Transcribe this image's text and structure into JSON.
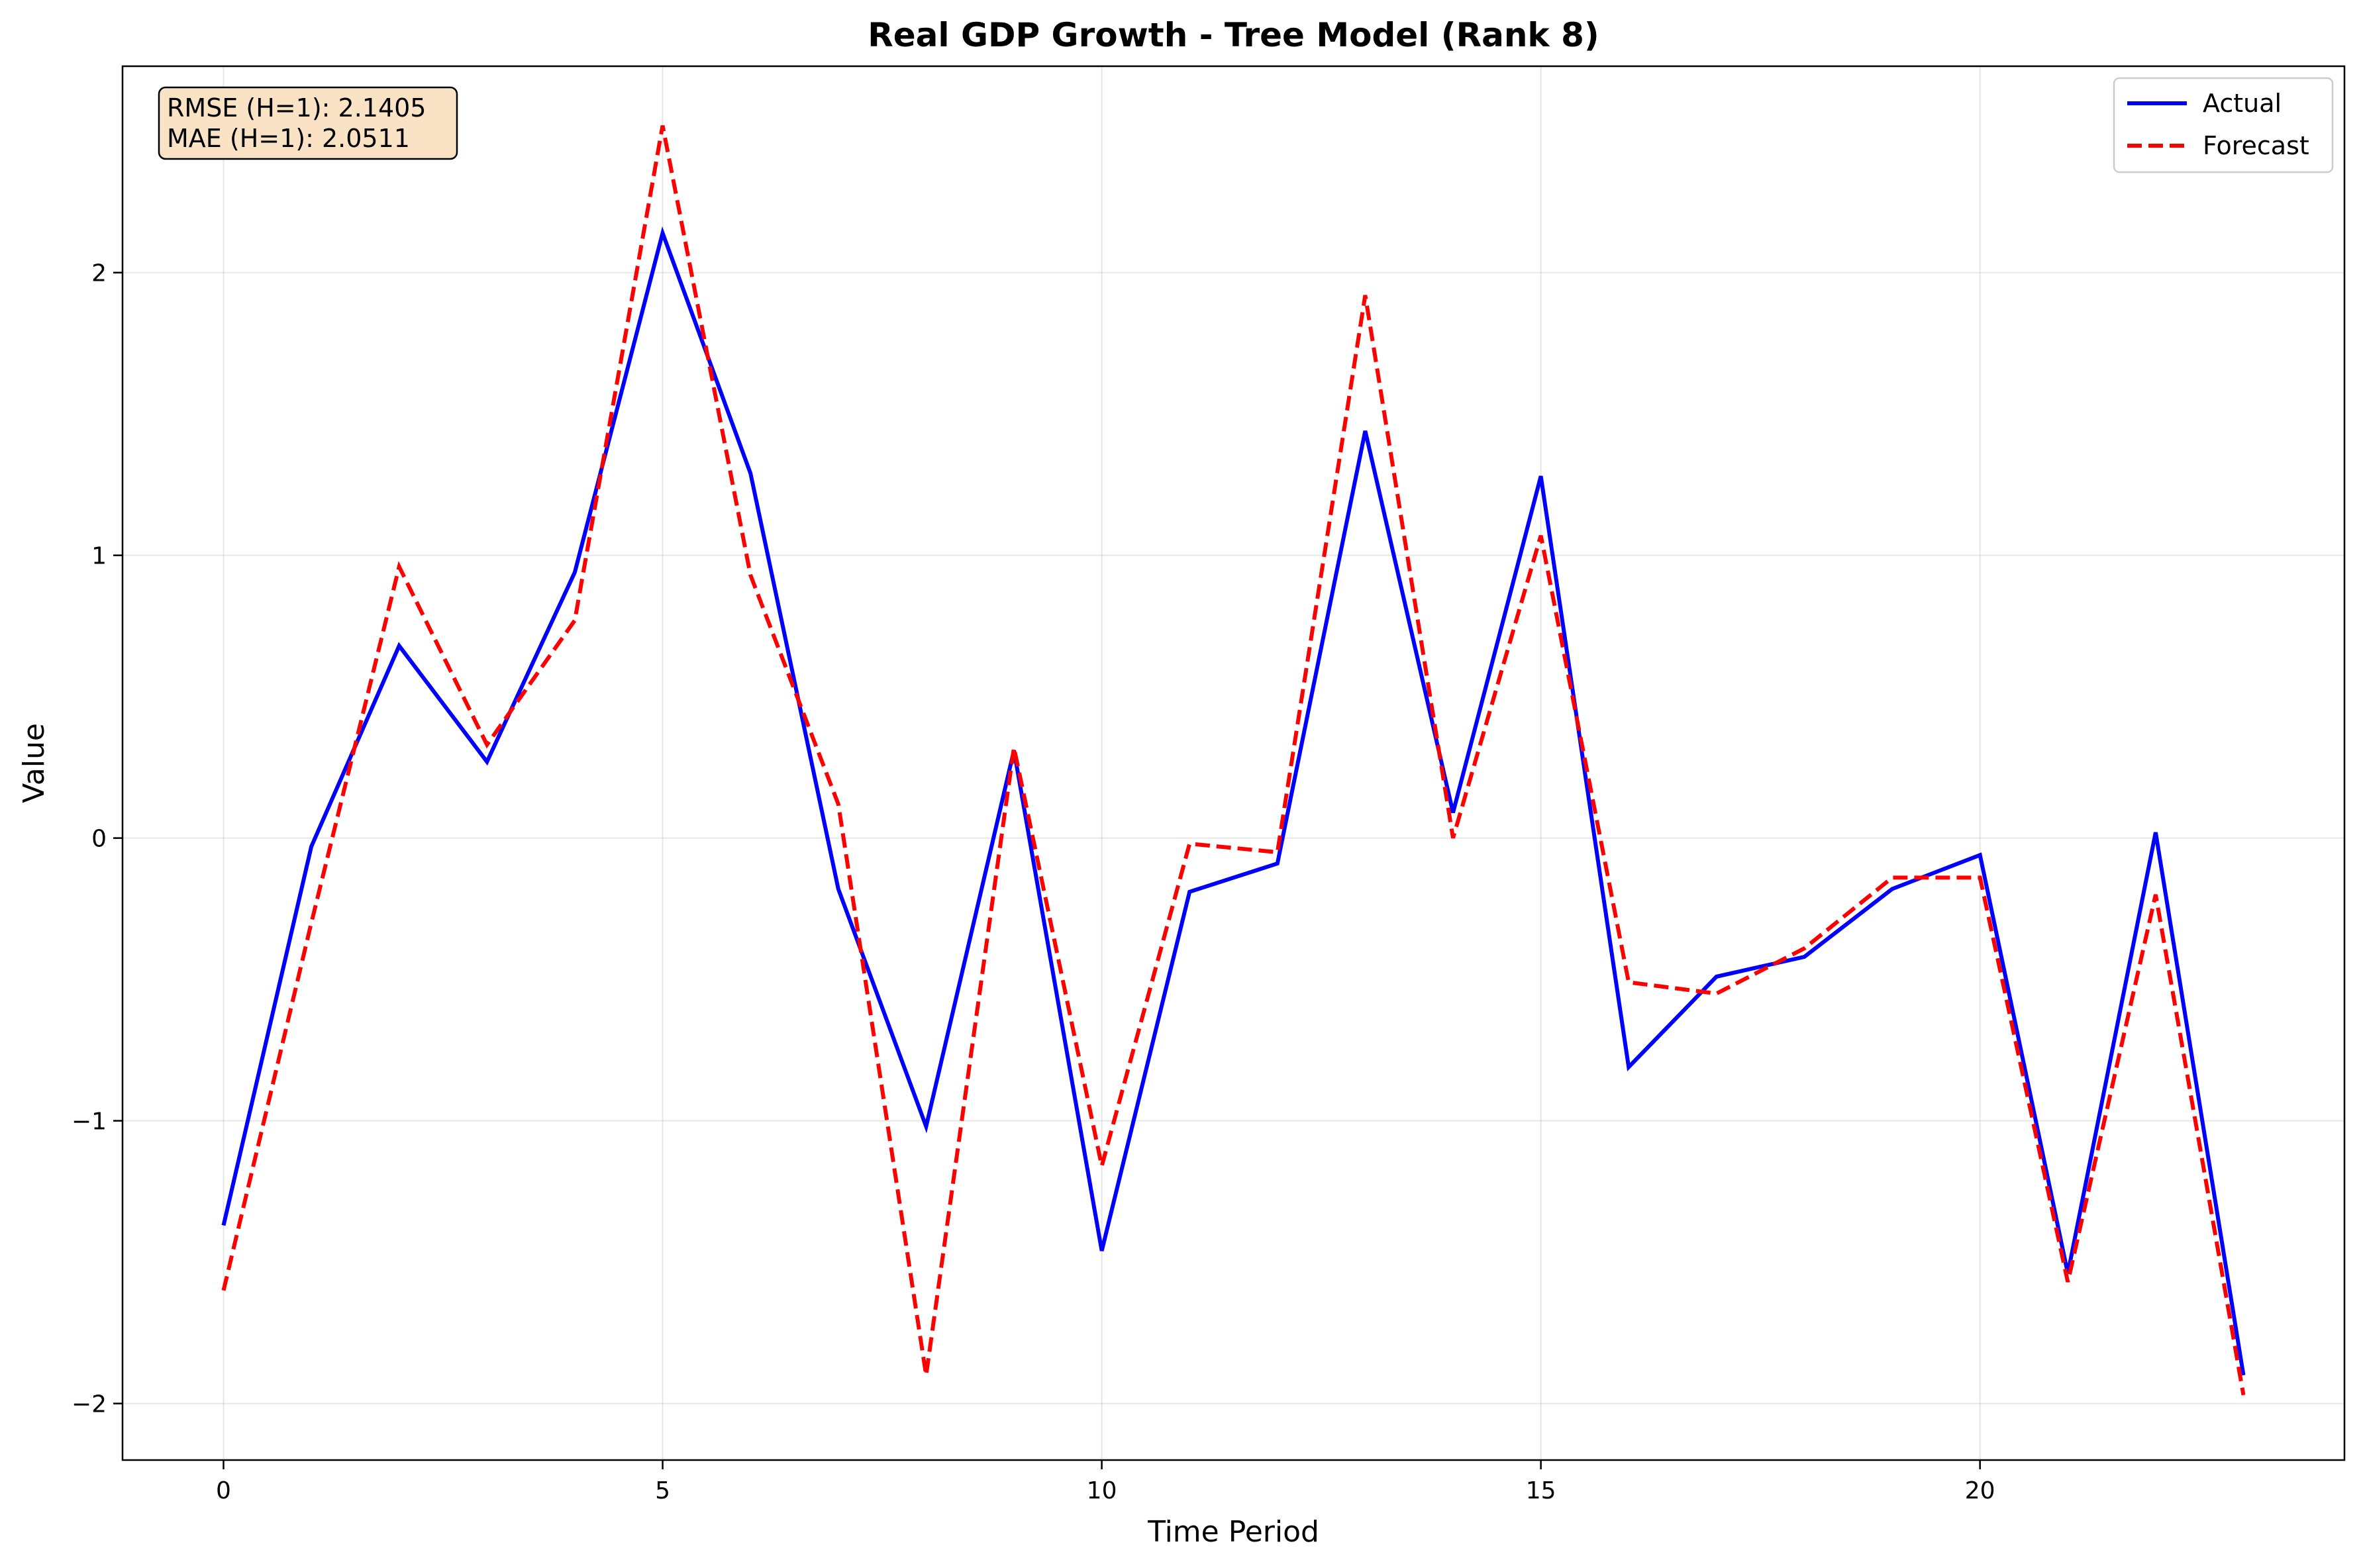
{
  "chart_data": {
    "type": "line",
    "title": "Real GDP Growth - Tree Model (Rank 8)",
    "xlabel": "Time Period",
    "ylabel": "Value",
    "x": [
      0,
      1,
      2,
      3,
      4,
      5,
      6,
      7,
      8,
      9,
      10,
      11,
      12,
      13,
      14,
      15,
      16,
      17,
      18,
      19,
      20,
      21,
      22,
      23
    ],
    "xlim": [
      -1.15,
      24.15
    ],
    "ylim": [
      -2.2,
      2.73
    ],
    "xticks": [
      0,
      5,
      10,
      15,
      20
    ],
    "xtick_labels": [
      "0",
      "5",
      "10",
      "15",
      "20"
    ],
    "yticks": [
      -2,
      -1,
      0,
      1,
      2
    ],
    "ytick_labels": [
      "−2",
      "−1",
      "0",
      "1",
      "2"
    ],
    "grid": true,
    "legend_position": "top-right",
    "series": [
      {
        "name": "Actual",
        "color": "#0000ff",
        "style": "solid",
        "values": [
          -1.37,
          -0.03,
          0.68,
          0.27,
          0.94,
          2.14,
          1.29,
          -0.18,
          -1.02,
          0.31,
          -1.46,
          -0.19,
          -0.09,
          1.44,
          0.09,
          1.28,
          -0.81,
          -0.49,
          -0.42,
          -0.18,
          -0.06,
          -1.54,
          0.02,
          -1.9
        ]
      },
      {
        "name": "Forecast",
        "color": "#ff0000",
        "style": "dashed",
        "values": [
          -1.6,
          -0.3,
          0.96,
          0.33,
          0.77,
          2.52,
          0.93,
          0.12,
          -1.9,
          0.32,
          -1.16,
          -0.02,
          -0.05,
          1.92,
          0.0,
          1.07,
          -0.51,
          -0.55,
          -0.39,
          -0.14,
          -0.14,
          -1.57,
          -0.2,
          -1.97
        ]
      }
    ],
    "annotation": {
      "lines": [
        "RMSE (H=1): 2.1405",
        "MAE (H=1): 2.0511"
      ],
      "background": "#f9e3c4"
    }
  }
}
